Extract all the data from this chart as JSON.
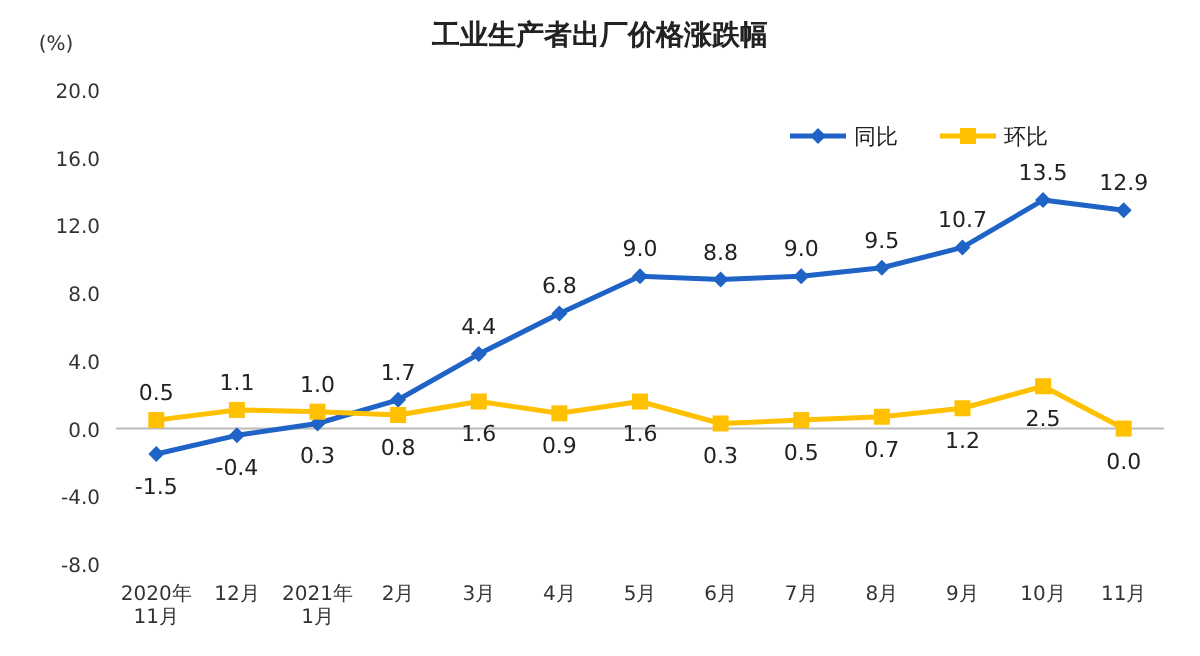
{
  "chart_data": {
    "type": "line",
    "title": "工业生产者出厂价格涨跌幅",
    "ylabel": "(%)",
    "categories": [
      "2020年\n11月",
      "12月",
      "2021年\n1月",
      "2月",
      "3月",
      "4月",
      "5月",
      "6月",
      "7月",
      "8月",
      "9月",
      "10月",
      "11月"
    ],
    "series": [
      {
        "name": "同比",
        "color": "#1f63c6",
        "marker": "diamond",
        "values": [
          -1.5,
          -0.4,
          0.3,
          1.7,
          4.4,
          6.8,
          9.0,
          8.8,
          9.0,
          9.5,
          10.7,
          13.5,
          12.9
        ],
        "value_labels": [
          "-1.5",
          "-0.4",
          "0.3",
          "1.7",
          "4.4",
          "6.8",
          "9.0",
          "8.8",
          "9.0",
          "9.5",
          "10.7",
          "13.5",
          "12.9"
        ]
      },
      {
        "name": "环比",
        "color": "#ffc000",
        "marker": "square",
        "values": [
          0.5,
          1.1,
          1.0,
          0.8,
          1.6,
          0.9,
          1.6,
          0.3,
          0.5,
          0.7,
          1.2,
          2.5,
          0.0
        ],
        "value_labels": [
          "0.5",
          "1.1",
          "1.0",
          "0.8",
          "1.6",
          "0.9",
          "1.6",
          "0.3",
          "0.5",
          "0.7",
          "1.2",
          "2.5",
          "0.0"
        ]
      }
    ],
    "ylim": [
      -8,
      20
    ],
    "yticks": [
      {
        "value": -8,
        "label": "-8.0"
      },
      {
        "value": -4,
        "label": "-4.0"
      },
      {
        "value": 0,
        "label": "0.0"
      },
      {
        "value": 4,
        "label": "4.0"
      },
      {
        "value": 8,
        "label": "8.0"
      },
      {
        "value": 12,
        "label": "12.0"
      },
      {
        "value": 16,
        "label": "16.0"
      },
      {
        "value": 20,
        "label": "20.0"
      }
    ],
    "legend": "top right",
    "line_style": "solid"
  }
}
